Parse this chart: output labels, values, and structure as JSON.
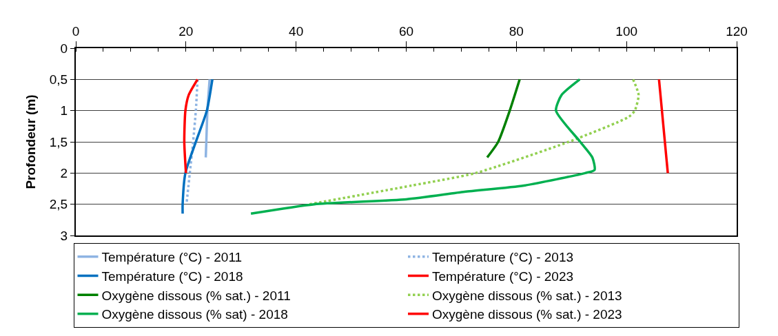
{
  "chart_data": {
    "type": "line",
    "orientation": "horizontal",
    "ylabel": "Profondeur (m)",
    "xlim": [
      0,
      120
    ],
    "xticks": [
      0,
      20,
      40,
      60,
      80,
      100,
      120
    ],
    "ylim": [
      3,
      0
    ],
    "yticks": [
      0,
      {
        "value": 0.5,
        "label": "0,5"
      },
      1,
      {
        "value": 1.5,
        "label": "1,5"
      },
      2,
      {
        "value": 2.5,
        "label": "2,5"
      },
      3
    ],
    "grid": "y",
    "legend": "bottom",
    "marker": "none",
    "series": [
      {
        "name": "Température (°C) - 2011",
        "color": "#8eb4e3",
        "line_style": "solid",
        "x": [
          0.5,
          1,
          1.5,
          1.75
        ],
        "values": [
          24.3,
          23.9,
          23.7,
          23.6
        ]
      },
      {
        "name": "Température (°C) - 2013",
        "color": "#8eb4e3",
        "line_style": "dotted",
        "x": [
          0.5,
          1,
          1.5,
          2,
          2.5
        ],
        "values": [
          22.1,
          21.8,
          21.3,
          20.7,
          20.1
        ]
      },
      {
        "name": "Température (°C) - 2018",
        "color": "#0070c0",
        "line_style": "solid",
        "x": [
          0.5,
          1,
          1.5,
          2,
          2.5,
          2.65
        ],
        "values": [
          24.8,
          23.8,
          21.8,
          19.9,
          19.4,
          19.4
        ]
      },
      {
        "name": "Température (°C) - 2023",
        "color": "#ff0000",
        "line_style": "solid",
        "x": [
          0.5,
          0.75,
          1,
          1.5,
          2
        ],
        "values": [
          22.1,
          20.5,
          19.9,
          19.7,
          20.0
        ]
      },
      {
        "name": "Oxygène dissous (% sat.) - 2011",
        "color": "#008000",
        "line_style": "solid",
        "x": [
          0.5,
          1,
          1.5,
          1.75
        ],
        "values": [
          80.6,
          78.8,
          76.7,
          74.7
        ]
      },
      {
        "name": "Oxygène dissous (% sat.) - 2013",
        "color": "#92d050",
        "line_style": "dotted",
        "x": [
          0.5,
          0.75,
          1,
          1.1,
          1.5,
          2,
          2.2,
          2.5
        ],
        "values": [
          101.2,
          102.2,
          101.5,
          100.4,
          89.5,
          72.6,
          61.0,
          42.4
        ]
      },
      {
        "name": "Oxygène dissous (% sat) - 2018",
        "color": "#00b050",
        "line_style": "solid",
        "x": [
          0.5,
          0.75,
          1,
          1.5,
          1.75,
          1.95,
          2,
          2.2,
          2.3,
          2.42,
          2.5,
          2.65
        ],
        "values": [
          91.5,
          88.2,
          87.2,
          91.6,
          93.8,
          94.2,
          92.5,
          81.4,
          70.6,
          60.0,
          43.3,
          31.8
        ]
      },
      {
        "name": "Oxygène dissous (% sat.) - 2023",
        "color": "#ff0000",
        "line_style": "solid",
        "x": [
          0.5,
          2
        ],
        "values": [
          105.9,
          107.5
        ]
      }
    ]
  }
}
